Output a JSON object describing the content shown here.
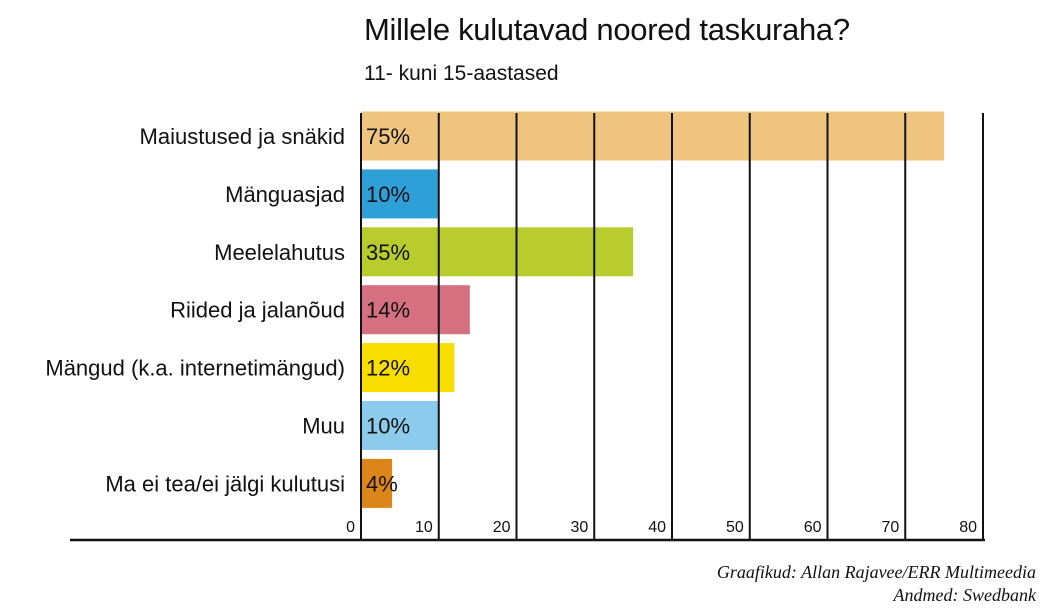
{
  "chart_data": {
    "type": "bar",
    "orientation": "horizontal",
    "title": "Millele kulutavad noored taskuraha?",
    "subtitle": "11- kuni 15-aastased",
    "categories": [
      "Maiustused ja snäkid",
      "Mänguasjad",
      "Meelelahutus",
      "Riided ja jalanõud",
      "Mängud (k.a. internetimängud)",
      "Muu",
      "Ma ei tea/ei jälgi kulutusi"
    ],
    "values": [
      75,
      10,
      35,
      14,
      12,
      10,
      4
    ],
    "data_labels": [
      "75%",
      "10%",
      "35%",
      "14%",
      "12%",
      "10%",
      "4%"
    ],
    "colors": [
      "#eec47e",
      "#2f9fd8",
      "#b9cc2e",
      "#d4707f",
      "#f7de00",
      "#8ccbeb",
      "#dc8518"
    ],
    "xlim": [
      0,
      80
    ],
    "xticks": [
      0,
      10,
      20,
      30,
      40,
      50,
      60,
      70,
      80
    ],
    "xlabel": "",
    "ylabel": "",
    "grid": true
  },
  "credits": {
    "graphics": "Graafikud: Allan Rajavee/ERR Multimeedia",
    "data": "Andmed: Swedbank"
  }
}
